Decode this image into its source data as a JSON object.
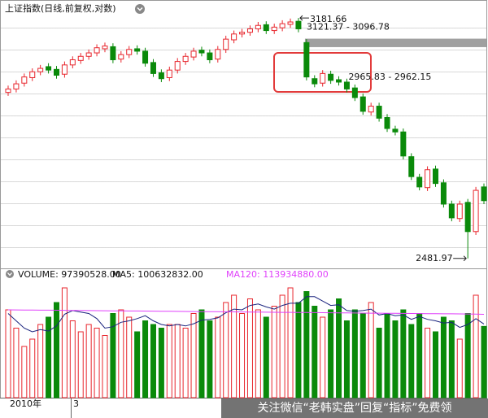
{
  "chart_data": {
    "type": "candlestick",
    "title": "上证指数(日线,前复权,对数)",
    "ylim": [
      2453,
      3215
    ],
    "up_color": "#e8262d",
    "down_color": "#0a8a0a",
    "open": [
      2965,
      2975,
      2992,
      3008,
      3025,
      3040,
      3032,
      3018,
      3045,
      3058,
      3070,
      3080,
      3092,
      3098,
      3062,
      3075,
      3092,
      3085,
      3052,
      3022,
      3008,
      3030,
      3055,
      3068,
      3088,
      3080,
      3062,
      3090,
      3118,
      3135,
      3140,
      3150,
      3162,
      3145,
      3153,
      3163,
      3172,
      3110,
      3005,
      2992,
      3018,
      3002,
      2995,
      2978,
      2952,
      2908,
      2925,
      2892,
      2858,
      2850,
      2778,
      2718,
      2688,
      2742,
      2702,
      2640,
      2598,
      2645,
      2560,
      2690
    ],
    "high": [
      2985,
      3000,
      3020,
      3035,
      3045,
      3050,
      3042,
      3055,
      3070,
      3080,
      3090,
      3105,
      3110,
      3108,
      3085,
      3100,
      3102,
      3095,
      3062,
      3032,
      3040,
      3065,
      3080,
      3095,
      3098,
      3090,
      3100,
      3130,
      3145,
      3150,
      3160,
      3170,
      3172,
      3165,
      3175,
      3180,
      3181.66,
      3120,
      3015,
      3030,
      3028,
      3012,
      3005,
      2988,
      2962,
      2935,
      2935,
      2902,
      2868,
      2860,
      2788,
      2728,
      2750,
      2752,
      2712,
      2650,
      2650,
      2655,
      2690,
      2700
    ],
    "low": [
      2955,
      2965,
      2982,
      2998,
      3015,
      3020,
      3005,
      3008,
      3035,
      3048,
      3060,
      3070,
      3082,
      3050,
      3052,
      3065,
      3075,
      3040,
      3010,
      2995,
      2998,
      3020,
      3045,
      3058,
      3070,
      3050,
      3052,
      3080,
      3108,
      3125,
      3130,
      3140,
      3135,
      3135,
      3143,
      3153,
      3140,
      3000,
      2980,
      2982,
      2990,
      2985,
      2965,
      2940,
      2900,
      2898,
      2880,
      2850,
      2840,
      2770,
      2710,
      2680,
      2678,
      2690,
      2630,
      2590,
      2588,
      2481.97,
      2550,
      2640
    ],
    "close": [
      2975,
      2990,
      3010,
      3025,
      3035,
      3030,
      3015,
      3045,
      3060,
      3070,
      3080,
      3095,
      3100,
      3060,
      3075,
      3090,
      3085,
      3050,
      3020,
      3005,
      3030,
      3055,
      3070,
      3085,
      3080,
      3060,
      3090,
      3120,
      3135,
      3140,
      3150,
      3160,
      3145,
      3155,
      3165,
      3170,
      3150,
      3010,
      2990,
      3020,
      3000,
      2995,
      2975,
      2950,
      2910,
      2925,
      2890,
      2860,
      2850,
      2780,
      2720,
      2690,
      2740,
      2700,
      2640,
      2600,
      2640,
      2560,
      2680,
      2650
    ],
    "annotations": [
      {
        "text": "3181.66"
      },
      {
        "text": "2965.83 - 2962.15"
      },
      {
        "text": "2481.97"
      }
    ],
    "gap": {
      "label": "3121.37 - 3096.78",
      "values": [
        3121.37,
        3096.78
      ],
      "color": "#a0a0a0"
    },
    "x_labels": [
      "2010年",
      "3"
    ],
    "volume": {
      "title": "VOLUME: 97390528.00",
      "ylim": [
        0,
        160000000
      ],
      "values": [
        120000000,
        95000000,
        70000000,
        80000000,
        100000000,
        110000000,
        130000000,
        150000000,
        105000000,
        90000000,
        100000000,
        95000000,
        85000000,
        115000000,
        120000000,
        110000000,
        90000000,
        105000000,
        100000000,
        95000000,
        100000000,
        100000000,
        95000000,
        115000000,
        120000000,
        105000000,
        110000000,
        130000000,
        140000000,
        115000000,
        135000000,
        120000000,
        110000000,
        125000000,
        140000000,
        150000000,
        130000000,
        145000000,
        125000000,
        110000000,
        120000000,
        135000000,
        105000000,
        120000000,
        115000000,
        130000000,
        95000000,
        115000000,
        105000000,
        120000000,
        100000000,
        115000000,
        95000000,
        90000000,
        110000000,
        105000000,
        80000000,
        115000000,
        140000000,
        97390528
      ],
      "series": [
        {
          "name": "MA5: 100632832.00",
          "color": "#1a237e",
          "values": [
            115000000,
            105000000,
            95000000,
            90000000,
            93000000,
            91000000,
            98000000,
            114000000,
            119000000,
            117000000,
            115000000,
            108000000,
            95000000,
            97000000,
            103000000,
            105000000,
            108000000,
            112000000,
            105000000,
            100000000,
            98000000,
            100000000,
            98000000,
            101000000,
            106000000,
            107000000,
            109000000,
            116000000,
            121000000,
            120000000,
            126000000,
            128000000,
            124000000,
            121000000,
            126000000,
            129000000,
            129000000,
            138000000,
            138000000,
            132000000,
            126000000,
            127000000,
            119000000,
            118000000,
            119000000,
            121000000,
            113000000,
            115000000,
            112000000,
            113000000,
            107000000,
            111000000,
            107000000,
            105000000,
            102000000,
            103000000,
            96000000,
            100000000,
            108000000,
            100632832
          ]
        },
        {
          "name": "MA120: 113934880.00",
          "color": "#e040fb",
          "values": [
            120000000,
            119900000,
            119800000,
            119700000,
            119600000,
            119500000,
            119400000,
            119300000,
            119200000,
            119100000,
            119000000,
            118900000,
            118800000,
            118700000,
            118600000,
            118500000,
            118400000,
            118300000,
            118200000,
            118100000,
            118000000,
            117900000,
            117800000,
            117700000,
            117600000,
            117500000,
            117400000,
            117300000,
            117200000,
            117100000,
            117000000,
            116900000,
            116800000,
            116700000,
            116600000,
            116500000,
            116400000,
            116300000,
            116200000,
            116100000,
            116000000,
            115900000,
            115800000,
            115700000,
            115600000,
            115500000,
            115400000,
            115300000,
            115200000,
            115100000,
            115000000,
            114900000,
            114800000,
            114700000,
            114600000,
            114500000,
            114400000,
            114300000,
            114200000,
            113934880
          ]
        }
      ]
    }
  },
  "watermark": "关注微信“老韩实盘”回复“指标”免费领"
}
